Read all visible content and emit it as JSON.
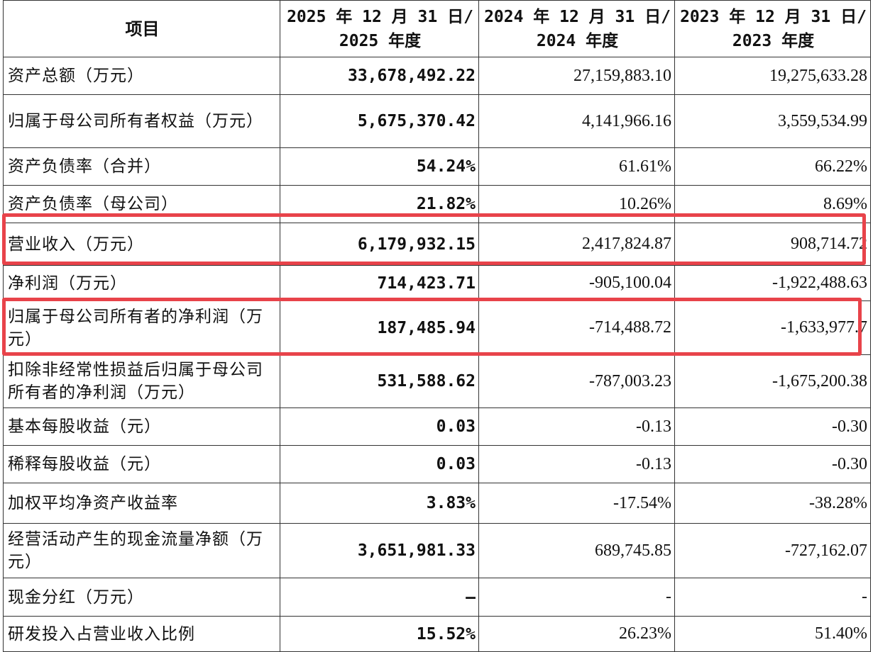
{
  "header": {
    "item": "项目",
    "col2025_line1": "2025 年 12 月 31 日/",
    "col2025_line2": "2025 年度",
    "col2024_line1": "2024 年 12 月 31 日/",
    "col2024_line2": "2024 年度",
    "col2023_line1": "2023 年 12 月 31 日/",
    "col2023_line2": "2023 年度"
  },
  "rows": [
    {
      "label": "资产总额（万元）",
      "v2025": "33,678,492.22",
      "v2024": "27,159,883.10",
      "v2023": "19,275,633.28"
    },
    {
      "label": "归属于母公司所有者权益（万元）",
      "v2025": "5,675,370.42",
      "v2024": "4,141,966.16",
      "v2023": "3,559,534.99"
    },
    {
      "label": "资产负债率（合并）",
      "v2025": "54.24%",
      "v2024": "61.61%",
      "v2023": "66.22%"
    },
    {
      "label": "资产负债率（母公司）",
      "v2025": "21.82%",
      "v2024": "10.26%",
      "v2023": "8.69%"
    },
    {
      "label": "营业收入（万元）",
      "v2025": "6,179,932.15",
      "v2024": "2,417,824.87",
      "v2023": "908,714.72"
    },
    {
      "label": "净利润（万元）",
      "v2025": "714,423.71",
      "v2024": "-905,100.04",
      "v2023": "-1,922,488.63"
    },
    {
      "label": "归属于母公司所有者的净利润（万元）",
      "v2025": "187,485.94",
      "v2024": "-714,488.72",
      "v2023": "-1,633,977.7"
    },
    {
      "label": "扣除非经常性损益后归属于母公司所有者的净利润（万元）",
      "v2025": "531,588.62",
      "v2024": "-787,003.23",
      "v2023": "-1,675,200.38"
    },
    {
      "label": "基本每股收益（元）",
      "v2025": "0.03",
      "v2024": "-0.13",
      "v2023": "-0.30"
    },
    {
      "label": "稀释每股收益（元）",
      "v2025": "0.03",
      "v2024": "-0.13",
      "v2023": "-0.30"
    },
    {
      "label": "加权平均净资产收益率",
      "v2025": "3.83%",
      "v2024": "-17.54%",
      "v2023": "-38.28%"
    },
    {
      "label": "经营活动产生的现金流量净额（万元）",
      "v2025": "3,651,981.33",
      "v2024": "689,745.85",
      "v2023": "-727,162.07"
    },
    {
      "label": "现金分红（万元）",
      "v2025": "–",
      "v2024": "-",
      "v2023": "-"
    },
    {
      "label": "研发投入占营业收入比例",
      "v2025": "15.52%",
      "v2024": "26.23%",
      "v2023": "51.40%"
    }
  ],
  "highlight_color": "#e8434a"
}
